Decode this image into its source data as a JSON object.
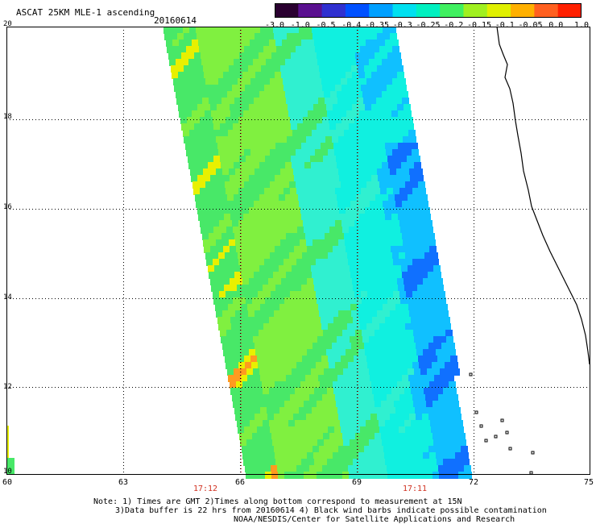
{
  "title": "ASCAT 25KM MLE-1 ascending",
  "date": "20160614",
  "colorbar": {
    "tick_labels": [
      "-3.0",
      "-1.0",
      "-0.5",
      "-0.4",
      "-0.35",
      "-0.3",
      "-0.25",
      "-0.2",
      "-0.15",
      "-0.1",
      "-0.05",
      "0.0",
      "1.0"
    ],
    "colors": [
      "#2a0030",
      "#5a1090",
      "#3030d0",
      "#0050ff",
      "#00a0ff",
      "#00e0f0",
      "#00f0c0",
      "#40f060",
      "#a0f020",
      "#e0f000",
      "#ffb000",
      "#ff6020",
      "#ff2000"
    ]
  },
  "axes": {
    "lat_labels": [
      "20",
      "18",
      "16",
      "14",
      "12",
      "10"
    ],
    "lon_labels": [
      "60",
      "63",
      "66",
      "69",
      "72",
      "75"
    ]
  },
  "times": [
    "17:12",
    "17:11"
  ],
  "footer": {
    "line1": "Note: 1) Times are GMT 2)Times along bottom correspond to measurement at 15N",
    "line2": "3)Data buffer is 22 hrs from 20160614 4) Black wind barbs indicate possible contamination",
    "line3": "NOAA/NESDIS/Center for Satellite Applications and Research"
  },
  "map_colors": {
    "green": "#48e868",
    "green_light": "#80f040",
    "yellow": "#e8f000",
    "orange": "#ff9a20",
    "cyan": "#10f0e0",
    "cyan_light": "#30f0d0",
    "blue": "#10c0ff",
    "blue_dark": "#1070ff"
  }
}
